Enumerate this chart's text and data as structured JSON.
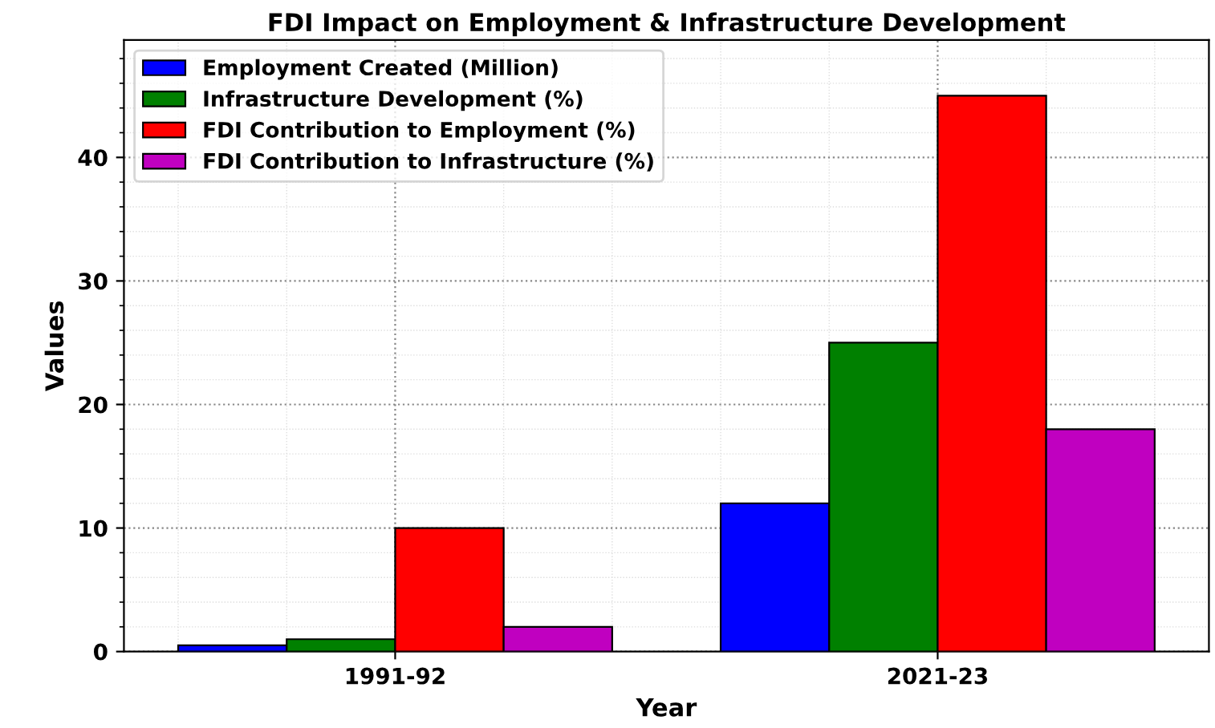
{
  "chart_data": {
    "type": "bar",
    "title": "FDI Impact on Employment & Infrastructure Development",
    "xlabel": "Year",
    "ylabel": "Values",
    "categories": [
      "1991-92",
      "2021-23"
    ],
    "series": [
      {
        "name": "Employment Created (Million)",
        "color": "#0000ff",
        "values": [
          0.5,
          12
        ]
      },
      {
        "name": "Infrastructure Development (%)",
        "color": "#008000",
        "values": [
          1,
          25
        ]
      },
      {
        "name": "FDI Contribution to Employment (%)",
        "color": "#ff0000",
        "values": [
          10,
          45
        ]
      },
      {
        "name": "FDI Contribution to Infrastructure (%)",
        "color": "#c000c0",
        "values": [
          2,
          18
        ]
      }
    ],
    "ylim": [
      0,
      49.5
    ],
    "yticks": [
      0,
      10,
      20,
      30,
      40
    ],
    "grid": true,
    "legend": "top left"
  }
}
